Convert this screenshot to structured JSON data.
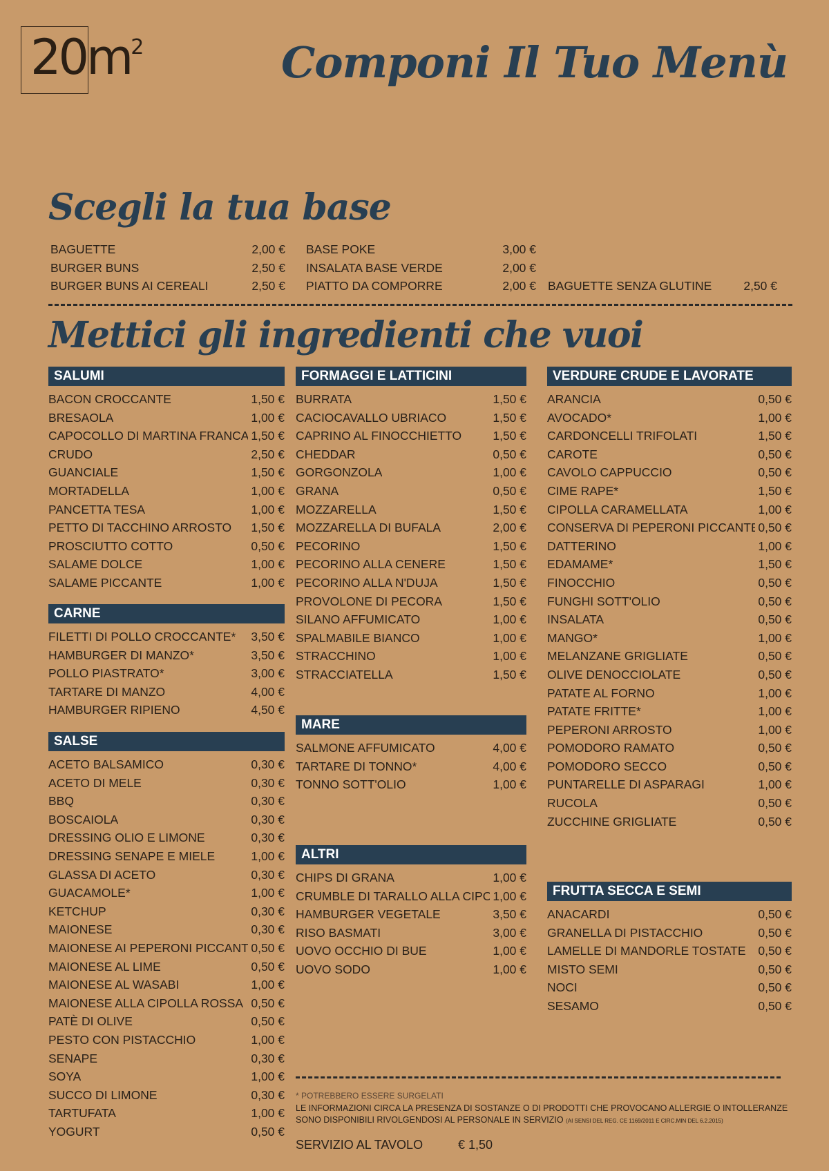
{
  "logo": {
    "main": "20m",
    "sup": "2"
  },
  "title": "Componi Il Tuo Menù",
  "base": {
    "title": "Scegli la tua base",
    "columns": [
      [
        {
          "name": "BAGUETTE",
          "price": "2,00 €"
        },
        {
          "name": "BURGER BUNS",
          "price": "2,50 €"
        },
        {
          "name": "BURGER BUNS AI CEREALI",
          "price": "2,50 €"
        }
      ],
      [
        {
          "name": "BASE POKE",
          "price": "3,00 €"
        },
        {
          "name": "INSALATA BASE VERDE",
          "price": "2,00 €"
        },
        {
          "name": "PIATTO DA COMPORRE",
          "price": "2,00 €"
        }
      ],
      [
        {
          "name": "BAGUETTE SENZA GLUTINE",
          "price": "2,50 €"
        }
      ]
    ]
  },
  "ingredients": {
    "title": "Mettici gli ingredienti che vuoi",
    "sections": [
      {
        "id": "salumi",
        "title": "SALUMI",
        "items": [
          {
            "name": "BACON CROCCANTE",
            "price": "1,50 €"
          },
          {
            "name": "BRESAOLA",
            "price": "1,00 €"
          },
          {
            "name": "CAPOCOLLO DI MARTINA FRANCA",
            "price": "1,50 €"
          },
          {
            "name": "CRUDO",
            "price": "2,50 €"
          },
          {
            "name": "GUANCIALE",
            "price": "1,50 €"
          },
          {
            "name": "MORTADELLA",
            "price": "1,00 €"
          },
          {
            "name": "PANCETTA TESA",
            "price": "1,00 €"
          },
          {
            "name": "PETTO DI TACCHINO ARROSTO",
            "price": "1,50 €"
          },
          {
            "name": "PROSCIUTTO COTTO",
            "price": "0,50 €"
          },
          {
            "name": "SALAME DOLCE",
            "price": "1,00 €"
          },
          {
            "name": "SALAME PICCANTE",
            "price": "1,00 €"
          }
        ]
      },
      {
        "id": "carne",
        "title": "CARNE",
        "items": [
          {
            "name": "FILETTI DI POLLO CROCCANTE*",
            "price": "3,50 €"
          },
          {
            "name": "HAMBURGER DI MANZO*",
            "price": "3,50 €"
          },
          {
            "name": "POLLO PIASTRATO*",
            "price": "3,00 €"
          },
          {
            "name": "TARTARE DI MANZO",
            "price": "4,00 €"
          },
          {
            "name": "HAMBURGER RIPIENO",
            "price": "4,50 €"
          }
        ]
      },
      {
        "id": "salse",
        "title": "SALSE",
        "items": [
          {
            "name": "ACETO BALSAMICO",
            "price": "0,30 €"
          },
          {
            "name": "ACETO DI MELE",
            "price": "0,30 €"
          },
          {
            "name": "BBQ",
            "price": "0,30 €"
          },
          {
            "name": "BOSCAIOLA",
            "price": "0,30 €"
          },
          {
            "name": "DRESSING OLIO E LIMONE",
            "price": "0,30 €"
          },
          {
            "name": "DRESSING SENAPE E MIELE",
            "price": "1,00 €"
          },
          {
            "name": "GLASSA DI ACETO",
            "price": "0,30 €"
          },
          {
            "name": "GUACAMOLE*",
            "price": "1,00 €"
          },
          {
            "name": "KETCHUP",
            "price": "0,30 €"
          },
          {
            "name": "MAIONESE",
            "price": "0,30 €"
          },
          {
            "name": "MAIONESE AI PEPERONI PICCANTI",
            "price": "0,50 €"
          },
          {
            "name": "MAIONESE AL LIME",
            "price": "0,50 €"
          },
          {
            "name": "MAIONESE AL WASABI",
            "price": "1,00 €"
          },
          {
            "name": "MAIONESE ALLA CIPOLLA ROSSA",
            "price": "0,50 €"
          },
          {
            "name": "PATÈ DI OLIVE",
            "price": "0,50 €"
          },
          {
            "name": "PESTO CON PISTACCHIO",
            "price": "1,00 €"
          },
          {
            "name": "SENAPE",
            "price": "0,30 €"
          },
          {
            "name": "SOYA",
            "price": "1,00 €"
          },
          {
            "name": "SUCCO DI LIMONE",
            "price": "0,30 €"
          },
          {
            "name": "TARTUFATA",
            "price": "1,00 €"
          },
          {
            "name": "YOGURT",
            "price": "0,50 €"
          }
        ]
      },
      {
        "id": "formaggi",
        "title": "FORMAGGI E LATTICINI",
        "items": [
          {
            "name": "BURRATA",
            "price": "1,50 €"
          },
          {
            "name": "CACIOCAVALLO UBRIACO",
            "price": "1,50 €"
          },
          {
            "name": "CAPRINO AL FINOCCHIETTO",
            "price": "1,50 €"
          },
          {
            "name": "CHEDDAR",
            "price": "0,50 €"
          },
          {
            "name": "GORGONZOLA",
            "price": "1,00 €"
          },
          {
            "name": "GRANA",
            "price": "0,50 €"
          },
          {
            "name": "MOZZARELLA",
            "price": "1,50 €"
          },
          {
            "name": "MOZZARELLA DI BUFALA",
            "price": "2,00 €"
          },
          {
            "name": "PECORINO",
            "price": "1,50 €"
          },
          {
            "name": "PECORINO ALLA CENERE",
            "price": "1,50 €"
          },
          {
            "name": "PECORINO ALLA N'DUJA",
            "price": "1,50 €"
          },
          {
            "name": "PROVOLONE DI PECORA",
            "price": "1,50 €"
          },
          {
            "name": "SILANO AFFUMICATO",
            "price": "1,00 €"
          },
          {
            "name": "SPALMABILE BIANCO",
            "price": "1,00 €"
          },
          {
            "name": "STRACCHINO",
            "price": "1,00 €"
          },
          {
            "name": "STRACCIATELLA",
            "price": "1,50 €"
          }
        ]
      },
      {
        "id": "mare",
        "title": "MARE",
        "items": [
          {
            "name": "SALMONE AFFUMICATO",
            "price": "4,00 €"
          },
          {
            "name": "TARTARE DI TONNO*",
            "price": "4,00 €"
          },
          {
            "name": "TONNO SOTT'OLIO",
            "price": "1,00 €"
          }
        ]
      },
      {
        "id": "altri",
        "title": "ALTRI",
        "items": [
          {
            "name": "CHIPS DI GRANA",
            "price": "1,00 €"
          },
          {
            "name": "CRUMBLE DI TARALLO ALLA CIPOLLA",
            "price": "1,00 €"
          },
          {
            "name": "HAMBURGER VEGETALE",
            "price": "3,50 €"
          },
          {
            "name": "RISO BASMATI",
            "price": "3,00 €"
          },
          {
            "name": "UOVO OCCHIO DI BUE",
            "price": "1,00 €"
          },
          {
            "name": "UOVO SODO",
            "price": "1,00 €"
          }
        ]
      },
      {
        "id": "verdure",
        "title": "VERDURE CRUDE E LAVORATE",
        "items": [
          {
            "name": "ARANCIA",
            "price": "0,50 €"
          },
          {
            "name": "AVOCADO*",
            "price": "1,00 €"
          },
          {
            "name": "CARDONCELLI TRIFOLATI",
            "price": "1,50 €"
          },
          {
            "name": "CAROTE",
            "price": "0,50 €"
          },
          {
            "name": "CAVOLO CAPPUCCIO",
            "price": "0,50 €"
          },
          {
            "name": "CIME RAPE*",
            "price": "1,50 €"
          },
          {
            "name": "CIPOLLA CARAMELLATA",
            "price": "1,00 €"
          },
          {
            "name": "CONSERVA DI PEPERONI PICCANTE",
            "price": "0,50 €"
          },
          {
            "name": "DATTERINO",
            "price": "1,00 €"
          },
          {
            "name": "EDAMAME*",
            "price": "1,50 €"
          },
          {
            "name": "FINOCCHIO",
            "price": "0,50 €"
          },
          {
            "name": "FUNGHI SOTT'OLIO",
            "price": "0,50 €"
          },
          {
            "name": "INSALATA",
            "price": "0,50 €"
          },
          {
            "name": "MANGO*",
            "price": "1,00 €"
          },
          {
            "name": "MELANZANE GRIGLIATE",
            "price": "0,50 €"
          },
          {
            "name": "OLIVE DENOCCIOLATE",
            "price": "0,50 €"
          },
          {
            "name": "PATATE AL FORNO",
            "price": "1,00 €"
          },
          {
            "name": "PATATE FRITTE*",
            "price": "1,00 €"
          },
          {
            "name": "PEPERONI ARROSTO",
            "price": "1,00 €"
          },
          {
            "name": "POMODORO RAMATO",
            "price": "0,50 €"
          },
          {
            "name": "POMODORO SECCO",
            "price": "0,50 €"
          },
          {
            "name": "PUNTARELLE DI ASPARAGI",
            "price": "1,00 €"
          },
          {
            "name": "RUCOLA",
            "price": "0,50 €"
          },
          {
            "name": "ZUCCHINE GRIGLIATE",
            "price": "0,50 €"
          }
        ]
      },
      {
        "id": "frutta",
        "title": "FRUTTA SECCA E SEMI",
        "items": [
          {
            "name": "ANACARDI",
            "price": "0,50 €"
          },
          {
            "name": "GRANELLA DI PISTACCHIO",
            "price": "0,50 €"
          },
          {
            "name": "LAMELLE DI MANDORLE TOSTATE",
            "price": "0,50 €"
          },
          {
            "name": "MISTO SEMI",
            "price": "0,50 €"
          },
          {
            "name": "NOCI",
            "price": "0,50 €"
          },
          {
            "name": "SESAMO",
            "price": "0,50 €"
          }
        ]
      }
    ]
  },
  "footer": {
    "frozen_note": "* POTREBBERO ESSERE SURGELATI",
    "allergen_note": "LE INFORMAZIONI CIRCA LA PRESENZA DI SOSTANZE O DI PRODOTTI CHE PROVOCANO ALLERGIE O INTOLLERANZE SONO DISPONIBILI RIVOLGENDOSI AL PERSONALE IN SERVIZIO",
    "legal_ref": "(AI SENSI DEL REG. CE 1169/2011 E CIRC.MIN DEL 6.2.2015)",
    "service_label": "SERVIZIO AL TAVOLO",
    "service_price": "€  1,50"
  },
  "colors": {
    "background": "#c89a6a",
    "accent": "#283f52",
    "text": "#2a2119"
  }
}
